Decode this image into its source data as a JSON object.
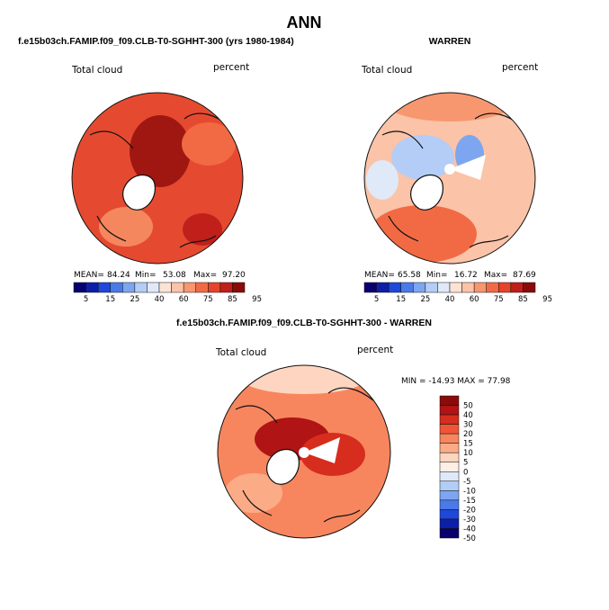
{
  "chart_data": {
    "type": "heatmap",
    "title": "ANN",
    "panels": [
      {
        "id": "model",
        "header": "f.e15b03ch.FAMIP.f09_f09.CLB-T0-SGHHT-300 (yrs 1980-1984)",
        "field_label": "Total cloud",
        "units_label": "percent",
        "stats": {
          "mean_label": "MEAN=",
          "mean": "84.24",
          "min_label": "Min=",
          "min": "53.08",
          "max_label": "Max=",
          "max": "97.20"
        },
        "colorbar_ticks": [
          "5",
          "15",
          "25",
          "40",
          "60",
          "75",
          "85",
          "95"
        ]
      },
      {
        "id": "obs",
        "header": "WARREN",
        "field_label": "Total cloud",
        "units_label": "percent",
        "stats": {
          "mean_label": "MEAN=",
          "mean": "65.58",
          "min_label": "Min=",
          "min": "16.72",
          "max_label": "Max=",
          "max": "87.69"
        },
        "colorbar_ticks": [
          "5",
          "15",
          "25",
          "40",
          "60",
          "75",
          "85",
          "95"
        ]
      },
      {
        "id": "diff",
        "header": "f.e15b03ch.FAMIP.f09_f09.CLB-T0-SGHHT-300 - WARREN",
        "field_label": "Total cloud",
        "units_label": "percent",
        "minmax_text": "MIN = -14.93 MAX =  77.98",
        "colorbar_ticks": [
          "50",
          "40",
          "30",
          "20",
          "15",
          "10",
          "5",
          "0",
          "-5",
          "-10",
          "-15",
          "-20",
          "-30",
          "-40",
          "-50"
        ]
      }
    ],
    "colors": {
      "sequential": [
        "#08006e",
        "#0d1fa8",
        "#1f47d9",
        "#4a7ae8",
        "#7ea6f0",
        "#b3cdf6",
        "#dfe9f8",
        "#fde3d6",
        "#fbc3a8",
        "#f7976f",
        "#f26a44",
        "#e5432a",
        "#c01f1a",
        "#8a0b0a"
      ],
      "diverging": [
        "#8a0b0a",
        "#b01414",
        "#d62d1e",
        "#f05538",
        "#f7865e",
        "#fbab86",
        "#fdd5c0",
        "#fdeee6",
        "#dfe9f8",
        "#b3cdf6",
        "#7ea6f0",
        "#4a7ae8",
        "#1f47d9",
        "#0d1fa8",
        "#08006e"
      ],
      "land_outline": "#111111"
    }
  }
}
